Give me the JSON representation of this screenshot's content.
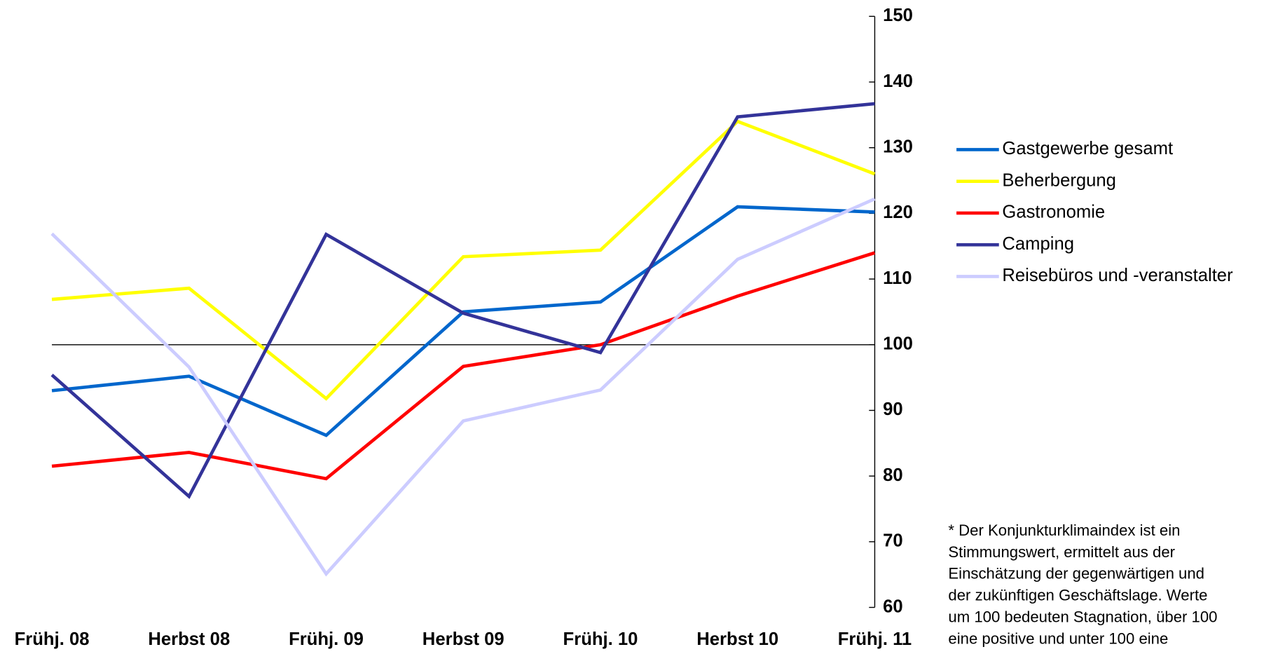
{
  "chart_data": {
    "type": "line",
    "categories": [
      "Frühj. 08",
      "Herbst 08",
      "Frühj. 09",
      "Herbst 09",
      "Frühj. 10",
      "Herbst 10",
      "Frühj. 11"
    ],
    "series": [
      {
        "name": "Gastgewerbe gesamt",
        "color": "#0066cc",
        "values": [
          93,
          95.2,
          86.2,
          105,
          106.5,
          121,
          120.2
        ]
      },
      {
        "name": "Beherbergung",
        "color": "#ffff00",
        "values": [
          106.9,
          108.6,
          91.8,
          113.4,
          114.4,
          134,
          126
        ]
      },
      {
        "name": "Gastronomie",
        "color": "#ff0000",
        "values": [
          81.5,
          83.6,
          79.6,
          96.7,
          100,
          107.4,
          114
        ]
      },
      {
        "name": "Camping",
        "color": "#333399",
        "values": [
          95.4,
          76.9,
          116.8,
          104.8,
          98.8,
          134.7,
          136.7
        ]
      },
      {
        "name": "Reisebüros und -veranstalter",
        "color": "#ccccff",
        "values": [
          116.9,
          96.6,
          65.1,
          88.4,
          93.1,
          113,
          122.2
        ]
      }
    ],
    "ylim": [
      60,
      150
    ],
    "yticks": [
      60,
      70,
      80,
      90,
      100,
      110,
      120,
      130,
      140,
      150
    ],
    "reference_line": 100,
    "legend": "right",
    "footnote": [
      "* Der Konjunkturklimaindex ist ein",
      "Stimmungswert, ermittelt aus der",
      "Einschätzung der gegenwärtigen und",
      "der zukünftigen Geschäftslage. Werte",
      "um 100 bedeuten Stagnation, über 100",
      "eine positive und unter 100 eine"
    ]
  }
}
